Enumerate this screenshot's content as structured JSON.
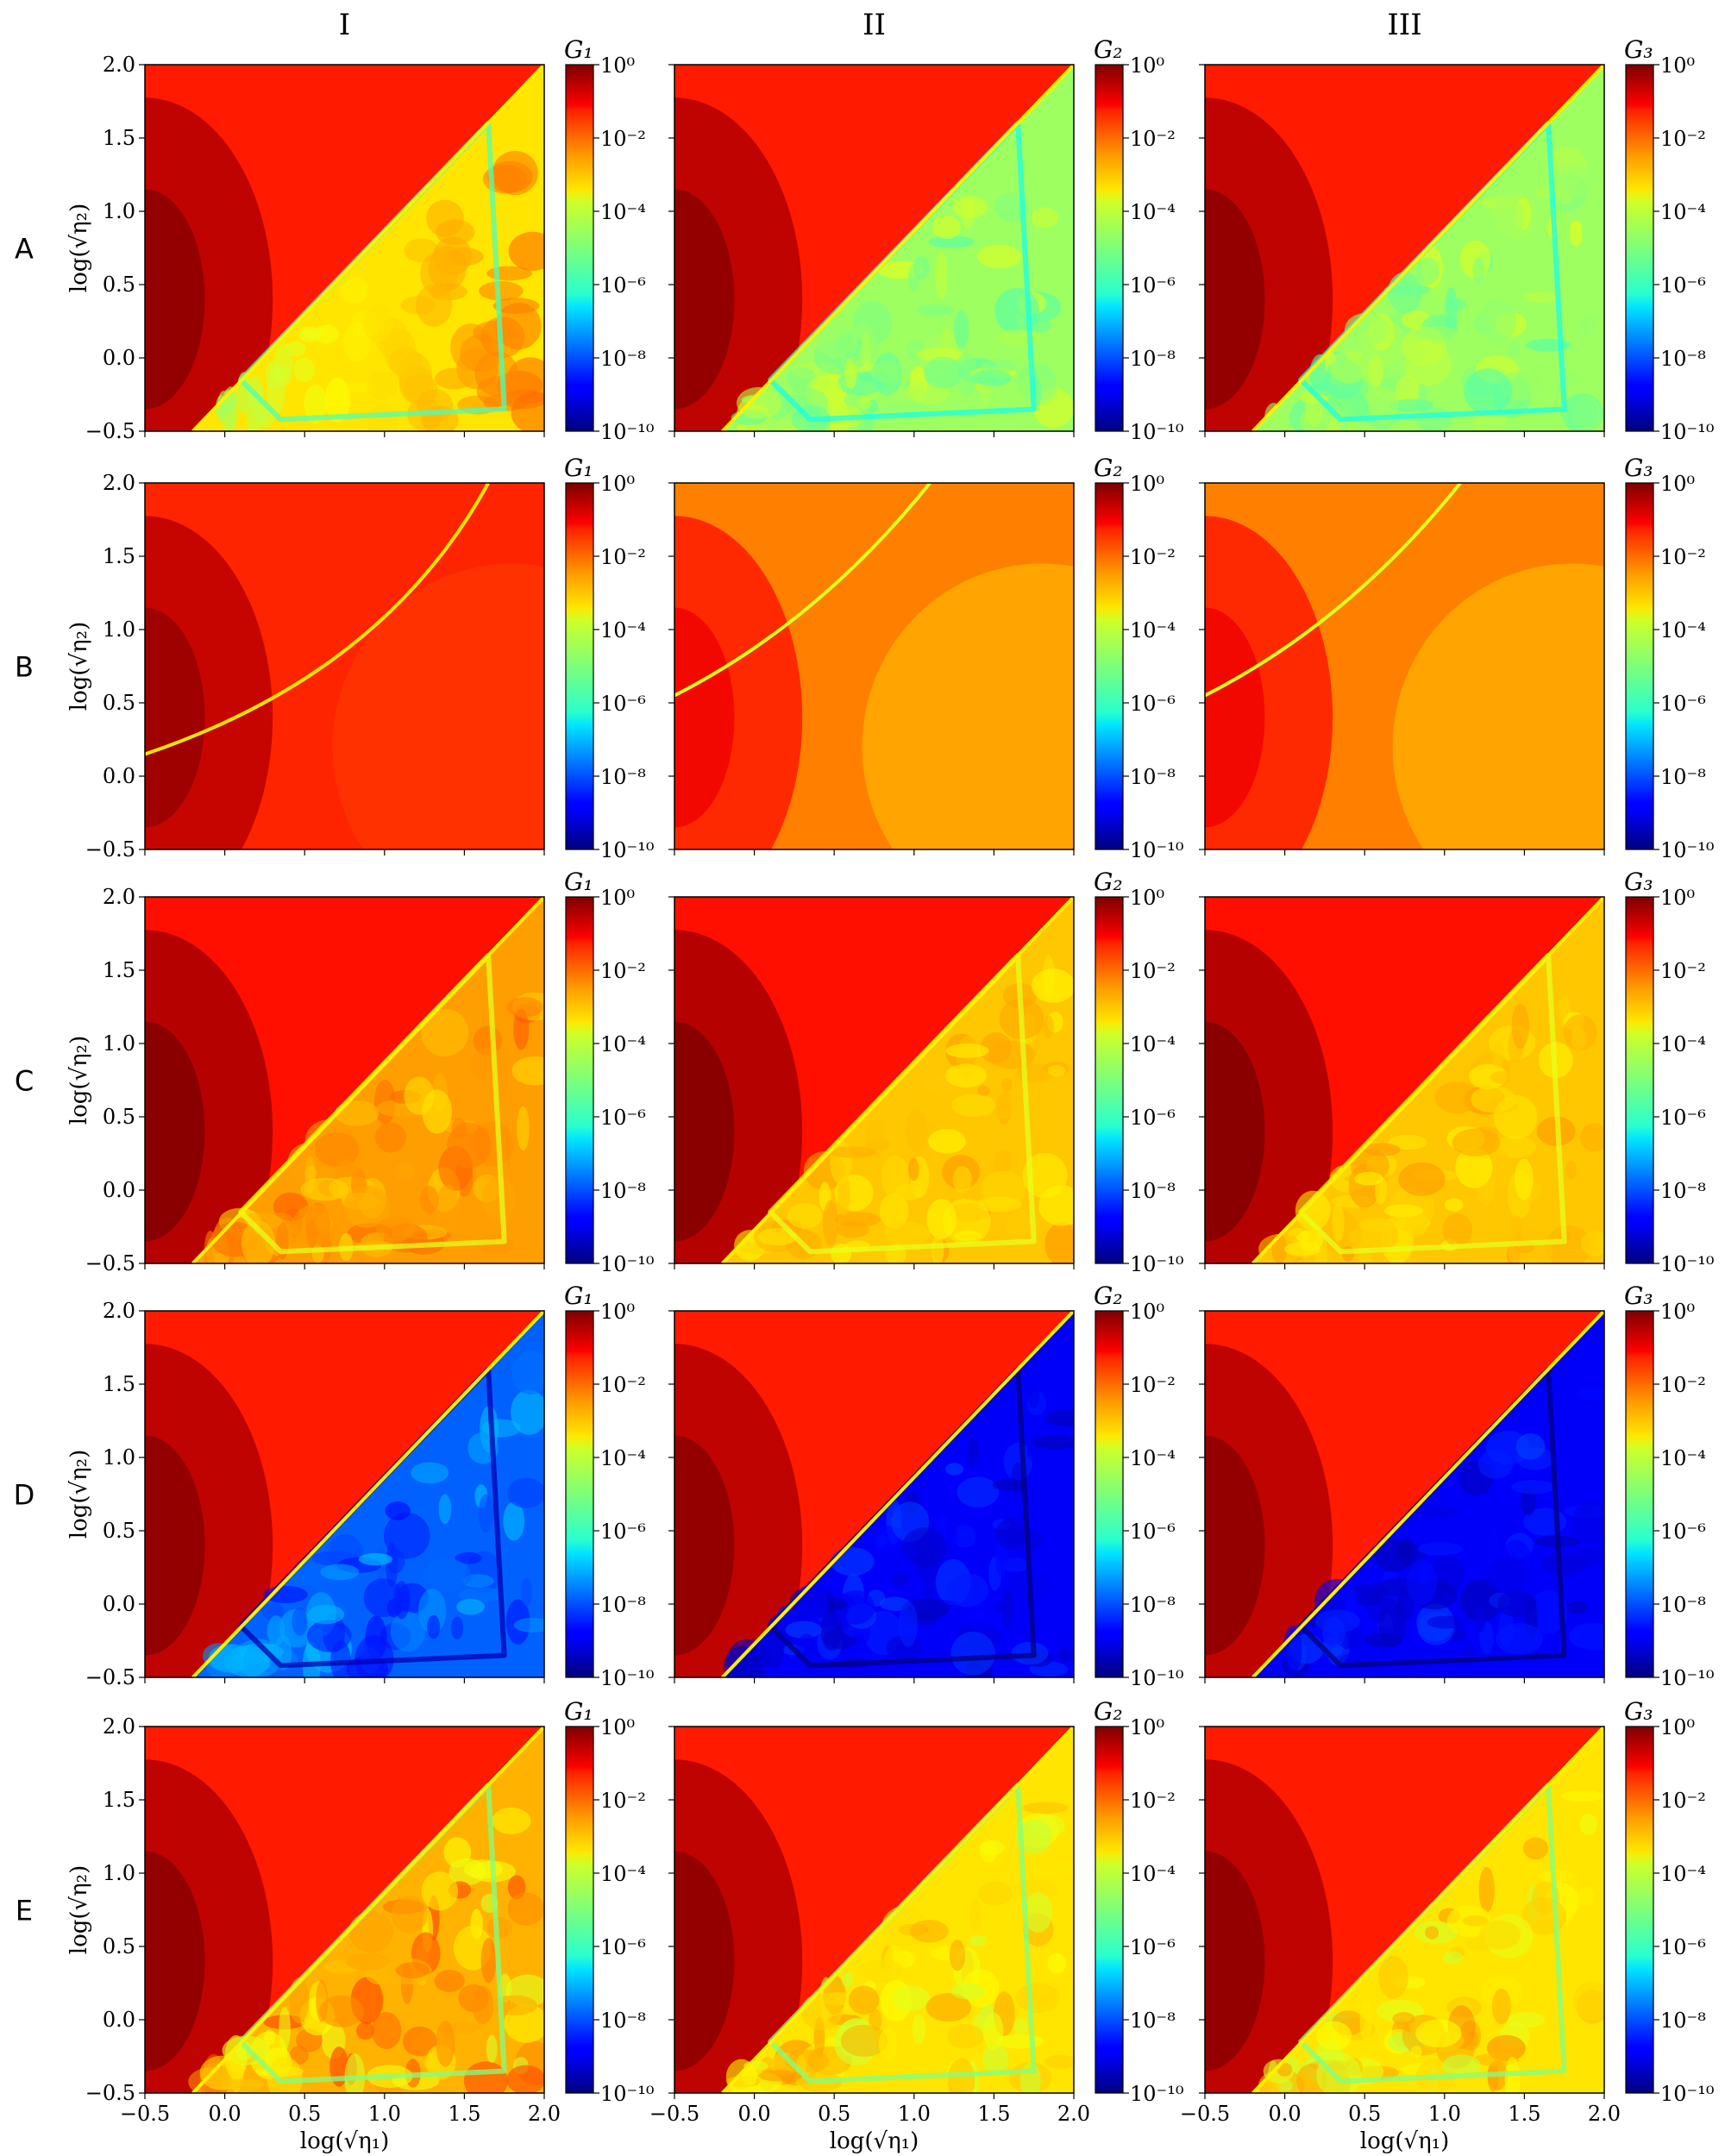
{
  "columns": [
    "I",
    "II",
    "III"
  ],
  "rows": [
    "A",
    "B",
    "C",
    "D",
    "E"
  ],
  "axes": {
    "xlabel": "log(√η₁)",
    "ylabel": "log(√η₂)",
    "xlim": [
      -0.5,
      2.0
    ],
    "ylim": [
      -0.5,
      2.0
    ],
    "xticks": [
      "−0.5",
      "0.0",
      "0.5",
      "1.0",
      "1.5",
      "2.0"
    ],
    "yticks": [
      "−0.5",
      "0.0",
      "0.5",
      "1.0",
      "1.5",
      "2.0"
    ]
  },
  "colorbar": {
    "scale": "log",
    "colormap": "jet",
    "ticks": [
      "10⁰",
      "10⁻²",
      "10⁻⁴",
      "10⁻⁶",
      "10⁻⁸",
      "10⁻¹⁰"
    ],
    "titles": [
      "G₁",
      "G₂",
      "G₃"
    ]
  },
  "chart_data": {
    "type": "heatmap",
    "grid": "5 rows × 3 columns",
    "z_range_log10": [
      -10,
      0
    ],
    "panels": [
      {
        "row": "A",
        "col": "I",
        "colorbar": "G₁",
        "diag_boundary": true,
        "background_log10": -1.5,
        "lower_region_log10": -3.5,
        "lower_min_log10": -5.5
      },
      {
        "row": "A",
        "col": "II",
        "colorbar": "G₂",
        "diag_boundary": true,
        "background_log10": -1.5,
        "lower_region_log10": -4.7,
        "lower_min_log10": -6.0
      },
      {
        "row": "A",
        "col": "III",
        "colorbar": "G₃",
        "diag_boundary": true,
        "background_log10": -1.5,
        "lower_region_log10": -4.7,
        "lower_min_log10": -6.0
      },
      {
        "row": "B",
        "col": "I",
        "colorbar": "G₁",
        "diag_boundary": false,
        "background_log10": -1.6,
        "lower_region_log10": -1.8,
        "lower_min_log10": -3.5
      },
      {
        "row": "B",
        "col": "II",
        "colorbar": "G₂",
        "diag_boundary": false,
        "background_log10": -2.5,
        "lower_region_log10": -3.0,
        "lower_min_log10": -4.0
      },
      {
        "row": "B",
        "col": "III",
        "colorbar": "G₃",
        "diag_boundary": false,
        "background_log10": -2.5,
        "lower_region_log10": -3.0,
        "lower_min_log10": -4.0
      },
      {
        "row": "C",
        "col": "I",
        "colorbar": "G₁",
        "diag_boundary": true,
        "background_log10": -1.4,
        "lower_region_log10": -2.8,
        "lower_min_log10": -4.0
      },
      {
        "row": "C",
        "col": "II",
        "colorbar": "G₂",
        "diag_boundary": true,
        "background_log10": -1.4,
        "lower_region_log10": -3.2,
        "lower_min_log10": -4.0
      },
      {
        "row": "C",
        "col": "III",
        "colorbar": "G₃",
        "diag_boundary": true,
        "background_log10": -1.4,
        "lower_region_log10": -3.2,
        "lower_min_log10": -4.0
      },
      {
        "row": "D",
        "col": "I",
        "colorbar": "G₁",
        "diag_boundary": true,
        "background_log10": -1.5,
        "lower_region_log10": -7.8,
        "lower_min_log10": -9.5
      },
      {
        "row": "D",
        "col": "II",
        "colorbar": "G₂",
        "diag_boundary": true,
        "background_log10": -1.5,
        "lower_region_log10": -8.8,
        "lower_min_log10": -10.0
      },
      {
        "row": "D",
        "col": "III",
        "colorbar": "G₃",
        "diag_boundary": true,
        "background_log10": -1.5,
        "lower_region_log10": -8.8,
        "lower_min_log10": -10.0
      },
      {
        "row": "E",
        "col": "I",
        "colorbar": "G₁",
        "diag_boundary": true,
        "background_log10": -1.5,
        "lower_region_log10": -3.0,
        "lower_min_log10": -5.0
      },
      {
        "row": "E",
        "col": "II",
        "colorbar": "G₂",
        "diag_boundary": true,
        "background_log10": -1.5,
        "lower_region_log10": -3.5,
        "lower_min_log10": -5.0
      },
      {
        "row": "E",
        "col": "III",
        "colorbar": "G₃",
        "diag_boundary": true,
        "background_log10": -1.5,
        "lower_region_log10": -3.5,
        "lower_min_log10": -5.0
      }
    ]
  }
}
